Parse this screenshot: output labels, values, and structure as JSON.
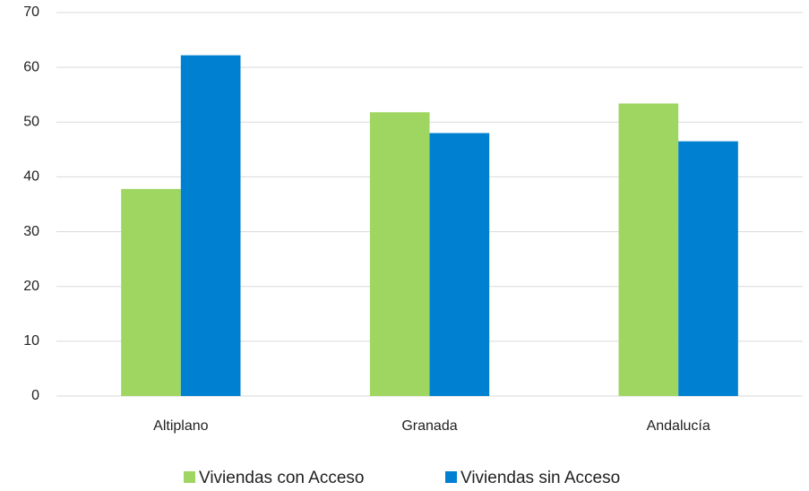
{
  "chart_data": {
    "type": "bar",
    "categories": [
      "Altiplano",
      "Granada",
      "Andalucía"
    ],
    "series": [
      {
        "name": "Viviendas con Acceso",
        "color": "#9fd662",
        "values": [
          37.8,
          51.8,
          53.4
        ]
      },
      {
        "name": "Viviendas sin Acceso",
        "color": "#0080d0",
        "values": [
          62.2,
          48.0,
          46.5
        ]
      }
    ],
    "ylim": [
      0,
      70
    ],
    "yticks": [
      0,
      10,
      20,
      30,
      40,
      50,
      60,
      70
    ],
    "grid": true,
    "legend": "bottom"
  }
}
